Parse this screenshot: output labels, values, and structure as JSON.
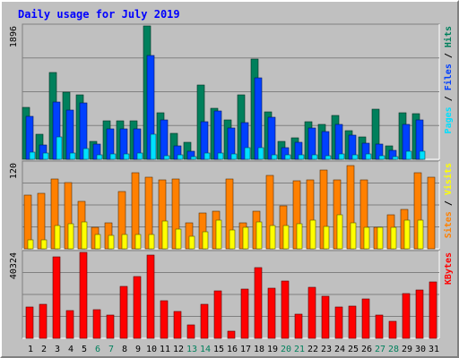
{
  "chart_data": {
    "type": "bar",
    "title": "Daily usage for July 2019",
    "colors": {
      "hits": "#00805c",
      "files": "#0040ff",
      "pages": "#00e0ff",
      "visits": "#ffff00",
      "sites": "#ff8000",
      "kbytes": "#ff0000",
      "weekend_label": "#00805c",
      "title": "#0000ff",
      "background": "#c0c0c0",
      "grid": "#808080"
    },
    "categories": [
      "1",
      "2",
      "3",
      "4",
      "5",
      "6",
      "7",
      "8",
      "9",
      "10",
      "11",
      "12",
      "13",
      "14",
      "15",
      "16",
      "17",
      "18",
      "19",
      "20",
      "21",
      "22",
      "23",
      "24",
      "25",
      "26",
      "27",
      "28",
      "29",
      "30",
      "31"
    ],
    "weekend_days": [
      "6",
      "7",
      "13",
      "14",
      "20",
      "21",
      "27",
      "28"
    ],
    "panels": [
      {
        "name": "hits",
        "ymax_label": "1896",
        "ylim": [
          0,
          1896
        ],
        "legend": [
          {
            "text": "Pages",
            "color": "#00e0ff"
          },
          {
            "text": " / ",
            "color": "#000000"
          },
          {
            "text": "Files",
            "color": "#0040ff"
          },
          {
            "text": " / ",
            "color": "#000000"
          },
          {
            "text": "Hits",
            "color": "#00805c"
          }
        ],
        "series": [
          {
            "name": "Hits",
            "values": [
              740,
              350,
              1230,
              960,
              920,
              260,
              550,
              550,
              550,
              1896,
              660,
              370,
              240,
              1050,
              720,
              560,
              920,
              1420,
              680,
              250,
              300,
              530,
              500,
              620,
              410,
              320,
              710,
              190,
              660,
              650,
              0
            ]
          },
          {
            "name": "Files",
            "values": [
              610,
              200,
              820,
              700,
              800,
              210,
              430,
              430,
              430,
              1480,
              560,
              190,
              120,
              540,
              690,
              450,
              520,
              1160,
              600,
              160,
              240,
              450,
              390,
              500,
              340,
              230,
              220,
              130,
              500,
              560,
              0
            ]
          },
          {
            "name": "Pages",
            "values": [
              100,
              90,
              320,
              90,
              150,
              60,
              70,
              70,
              90,
              360,
              50,
              60,
              40,
              90,
              90,
              80,
              170,
              170,
              60,
              60,
              60,
              60,
              50,
              70,
              60,
              70,
              50,
              40,
              110,
              120,
              0
            ]
          }
        ]
      },
      {
        "name": "visits",
        "ymax_label": "120",
        "ylim": [
          0,
          120
        ],
        "legend": [
          {
            "text": "Sites",
            "color": "#ff8000"
          },
          {
            "text": " / ",
            "color": "#000000"
          },
          {
            "text": "Visits",
            "color": "#ffff00"
          }
        ],
        "series": [
          {
            "name": "Sites",
            "values": [
              75,
              78,
              98,
              92,
              66,
              30,
              36,
              80,
              106,
              100,
              96,
              98,
              36,
              50,
              52,
              98,
              36,
              52,
              102,
              60,
              95,
              96,
              110,
              96,
              116,
              96,
              30,
              48,
              55,
              106,
              100
            ]
          },
          {
            "name": "Visits",
            "values": [
              12,
              12,
              32,
              35,
              38,
              20,
              19,
              20,
              20,
              20,
              39,
              28,
              17,
              24,
              40,
              26,
              30,
              38,
              32,
              33,
              35,
              40,
              31,
              48,
              36,
              30,
              30,
              30,
              40,
              40,
              0
            ]
          }
        ]
      },
      {
        "name": "kbytes",
        "ymax_label": "40324",
        "ylim": [
          0,
          40324
        ],
        "legend": [
          {
            "text": "KBytes",
            "color": "#ff0000"
          }
        ],
        "series": [
          {
            "name": "KBytes",
            "values": [
              14800,
              15900,
              38400,
              13100,
              40324,
              13600,
              10900,
              24300,
              29100,
              38900,
              17700,
              12400,
              6300,
              16100,
              22400,
              3200,
              23000,
              33100,
              23400,
              26800,
              11500,
              23800,
              19800,
              14700,
              15100,
              18500,
              10900,
              8100,
              20800,
              22700,
              26600
            ]
          }
        ]
      }
    ]
  }
}
